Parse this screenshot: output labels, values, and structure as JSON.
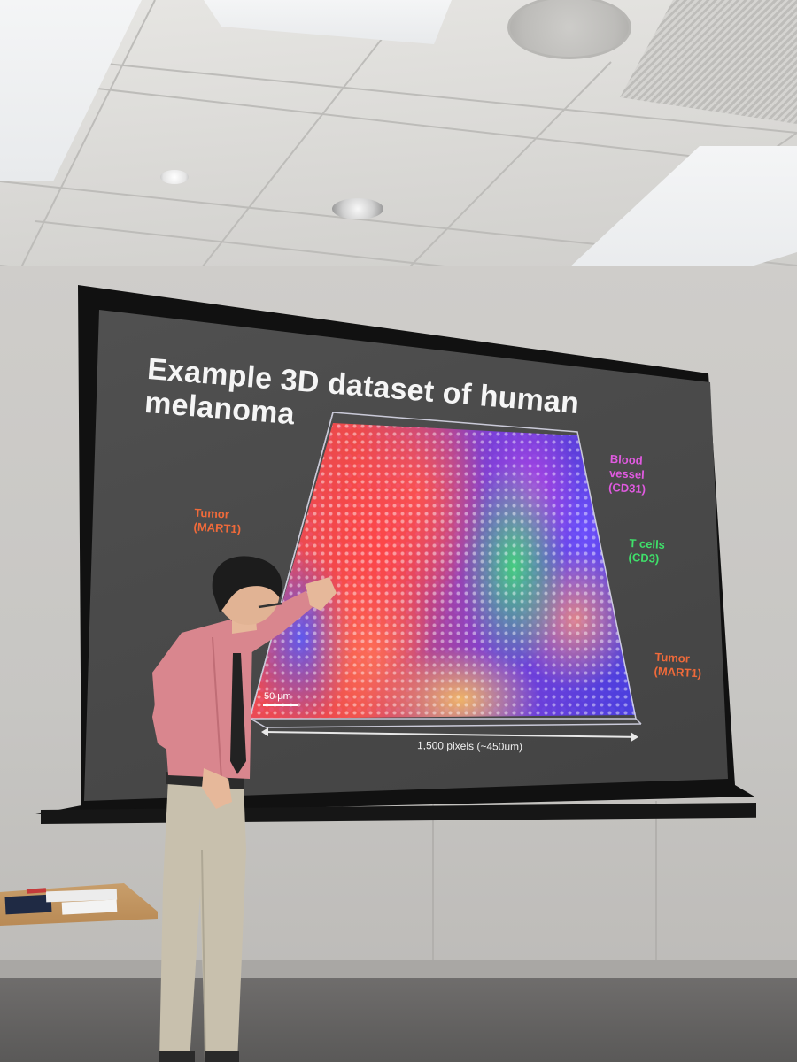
{
  "slide": {
    "title": "Example 3D dataset of human melanoma",
    "labels": {
      "tumor_left": "Tumor\n(MART1)",
      "blood_vessel": "Blood\nvessel\n(CD31)",
      "t_cells": "T cells\n(CD3)",
      "tumor_right": "Tumor\n(MART1)"
    },
    "scale_bar": "50 μm",
    "dimension": "1,500 pixels (~450um)"
  },
  "colors": {
    "tumor_label": "#f06a3a",
    "vessel_label": "#e05ae0",
    "tcell_label": "#3fe06a",
    "shirt": "#d9868e",
    "pants": "#c8c0ad"
  }
}
